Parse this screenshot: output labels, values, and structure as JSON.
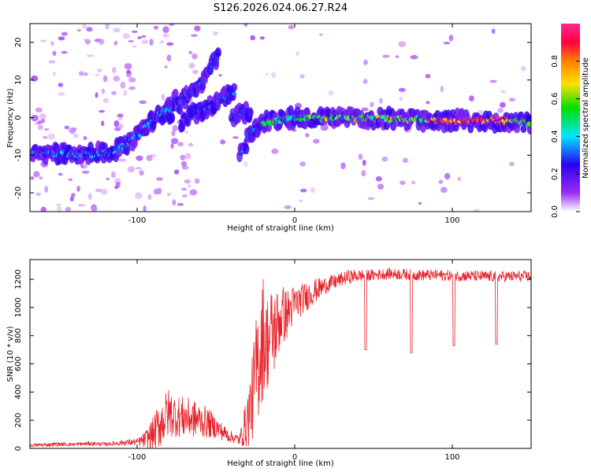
{
  "title": "S126.2026.024.06.27.R24",
  "chart_data": [
    {
      "type": "heatmap",
      "title": "S126.2026.024.06.27.R24",
      "xlabel": "Height of straight line (km)",
      "ylabel": "Frequency (Hz)",
      "xlim": [
        -168,
        150
      ],
      "ylim": [
        -25,
        25
      ],
      "x_ticks": [
        -100,
        0,
        100
      ],
      "y_ticks": [
        -20,
        -10,
        0,
        10,
        20
      ],
      "colorbar": {
        "label": "Normalized spectral amplitude",
        "range": [
          0,
          1
        ],
        "ticks": [
          0.0,
          0.2,
          0.4,
          0.6,
          0.8
        ],
        "colormap": [
          "#ffffff",
          "#9b2cf5",
          "#2b00f0",
          "#00e6ff",
          "#00e000",
          "#ffe100",
          "#ff8000",
          "#ff0040",
          "#ff2a8e"
        ]
      },
      "ridges": [
        {
          "name": "main",
          "points": [
            [
              -168,
              -9.5
            ],
            [
              -150,
              -9.5
            ],
            [
              -130,
              -9.8
            ],
            [
              -115,
              -9.2
            ],
            [
              -108,
              -7.5
            ],
            [
              -100,
              -5
            ],
            [
              -90,
              -1
            ],
            [
              -82,
              2
            ],
            [
              -75,
              5
            ]
          ]
        },
        {
          "name": "branch1",
          "points": [
            [
              -80,
              1
            ],
            [
              -70,
              5
            ],
            [
              -60,
              9
            ],
            [
              -52,
              14
            ],
            [
              -48,
              17
            ]
          ]
        },
        {
          "name": "branch2",
          "points": [
            [
              -72,
              -1
            ],
            [
              -60,
              2
            ],
            [
              -50,
              4
            ],
            [
              -42,
              6
            ],
            [
              -38,
              7
            ]
          ]
        },
        {
          "name": "branch3",
          "points": [
            [
              -40,
              0
            ],
            [
              -34,
              1
            ],
            [
              -28,
              2
            ]
          ]
        },
        {
          "name": "branch4",
          "points": [
            [
              -35,
              -10
            ],
            [
              -30,
              -6
            ],
            [
              -26,
              -3
            ],
            [
              -20,
              -2
            ]
          ]
        },
        {
          "name": "steady",
          "points": [
            [
              -20,
              -1.5
            ],
            [
              -5,
              -0.5
            ],
            [
              0,
              0
            ],
            [
              20,
              0
            ],
            [
              60,
              -0.3
            ],
            [
              100,
              -0.8
            ],
            [
              130,
              -0.8
            ],
            [
              150,
              -1.5
            ]
          ]
        }
      ]
    },
    {
      "type": "line",
      "xlabel": "Height of straight line (km)",
      "ylabel": "SNR (10 * v/v)",
      "xlim": [
        -168,
        150
      ],
      "ylim": [
        0,
        1340
      ],
      "x_ticks": [
        -100,
        0,
        100
      ],
      "y_ticks": [
        0,
        200,
        400,
        600,
        800,
        1000,
        1200
      ],
      "series": [
        {
          "name": "SNR",
          "color": "#e8222a",
          "x": [
            -168,
            -160,
            -150,
            -140,
            -130,
            -120,
            -110,
            -100,
            -95,
            -90,
            -85,
            -80,
            -75,
            -70,
            -65,
            -60,
            -55,
            -50,
            -45,
            -40,
            -35,
            -30,
            -27,
            -25,
            -22,
            -20,
            -18,
            -15,
            -12,
            -10,
            -8,
            -5,
            -2,
            0,
            5,
            10,
            15,
            20,
            25,
            30,
            35,
            40,
            50,
            60,
            70,
            80,
            90,
            100,
            110,
            120,
            130,
            140,
            150
          ],
          "values": [
            20,
            25,
            30,
            28,
            35,
            30,
            40,
            45,
            60,
            100,
            180,
            250,
            230,
            220,
            210,
            200,
            180,
            150,
            110,
            80,
            60,
            200,
            350,
            500,
            700,
            800,
            750,
            800,
            850,
            900,
            950,
            950,
            1000,
            1020,
            1060,
            1100,
            1130,
            1160,
            1180,
            1200,
            1220,
            1225,
            1230,
            1240,
            1235,
            1230,
            1230,
            1225,
            1225,
            1220,
            1220,
            1220,
            1220
          ],
          "amp": [
            10,
            12,
            15,
            12,
            15,
            12,
            20,
            25,
            60,
            120,
            180,
            180,
            150,
            150,
            140,
            120,
            110,
            80,
            60,
            40,
            40,
            200,
            300,
            400,
            450,
            450,
            350,
            350,
            300,
            250,
            220,
            180,
            160,
            140,
            110,
            100,
            80,
            60,
            55,
            50,
            50,
            45,
            40,
            40,
            40,
            40,
            40,
            40,
            40,
            40,
            40,
            40,
            40
          ],
          "dips": [
            [
              45,
              700
            ],
            [
              74,
              680
            ],
            [
              101,
              730
            ],
            [
              128,
              740
            ]
          ]
        }
      ]
    }
  ]
}
